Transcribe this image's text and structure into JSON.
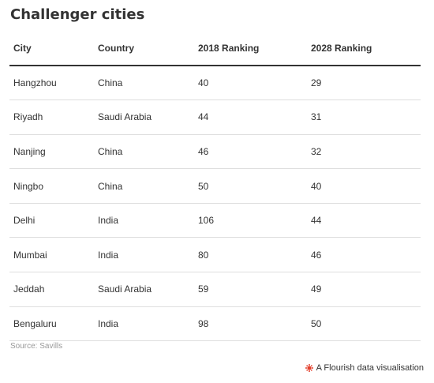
{
  "title": "Challenger cities",
  "source": "Source: Savills",
  "attribution": "A Flourish data visualisation",
  "colors": {
    "text": "#333333",
    "divider": "#dedede",
    "header_rule": "#333333",
    "source": "#999999",
    "flourish_accent": "#e3402d"
  },
  "icons": {
    "attribution_icon": "flourish-logo-icon"
  },
  "chart_data": {
    "type": "table",
    "title": "Challenger cities",
    "columns": [
      "City",
      "Country",
      "2018 Ranking",
      "2028 Ranking"
    ],
    "rows": [
      [
        "Hangzhou",
        "China",
        "40",
        "29"
      ],
      [
        "Riyadh",
        "Saudi Arabia",
        "44",
        "31"
      ],
      [
        "Nanjing",
        "China",
        "46",
        "32"
      ],
      [
        "Ningbo",
        "China",
        "50",
        "40"
      ],
      [
        "Delhi",
        "India",
        "106",
        "44"
      ],
      [
        "Mumbai",
        "India",
        "80",
        "46"
      ],
      [
        "Jeddah",
        "Saudi Arabia",
        "59",
        "49"
      ],
      [
        "Bengaluru",
        "India",
        "98",
        "50"
      ]
    ]
  }
}
